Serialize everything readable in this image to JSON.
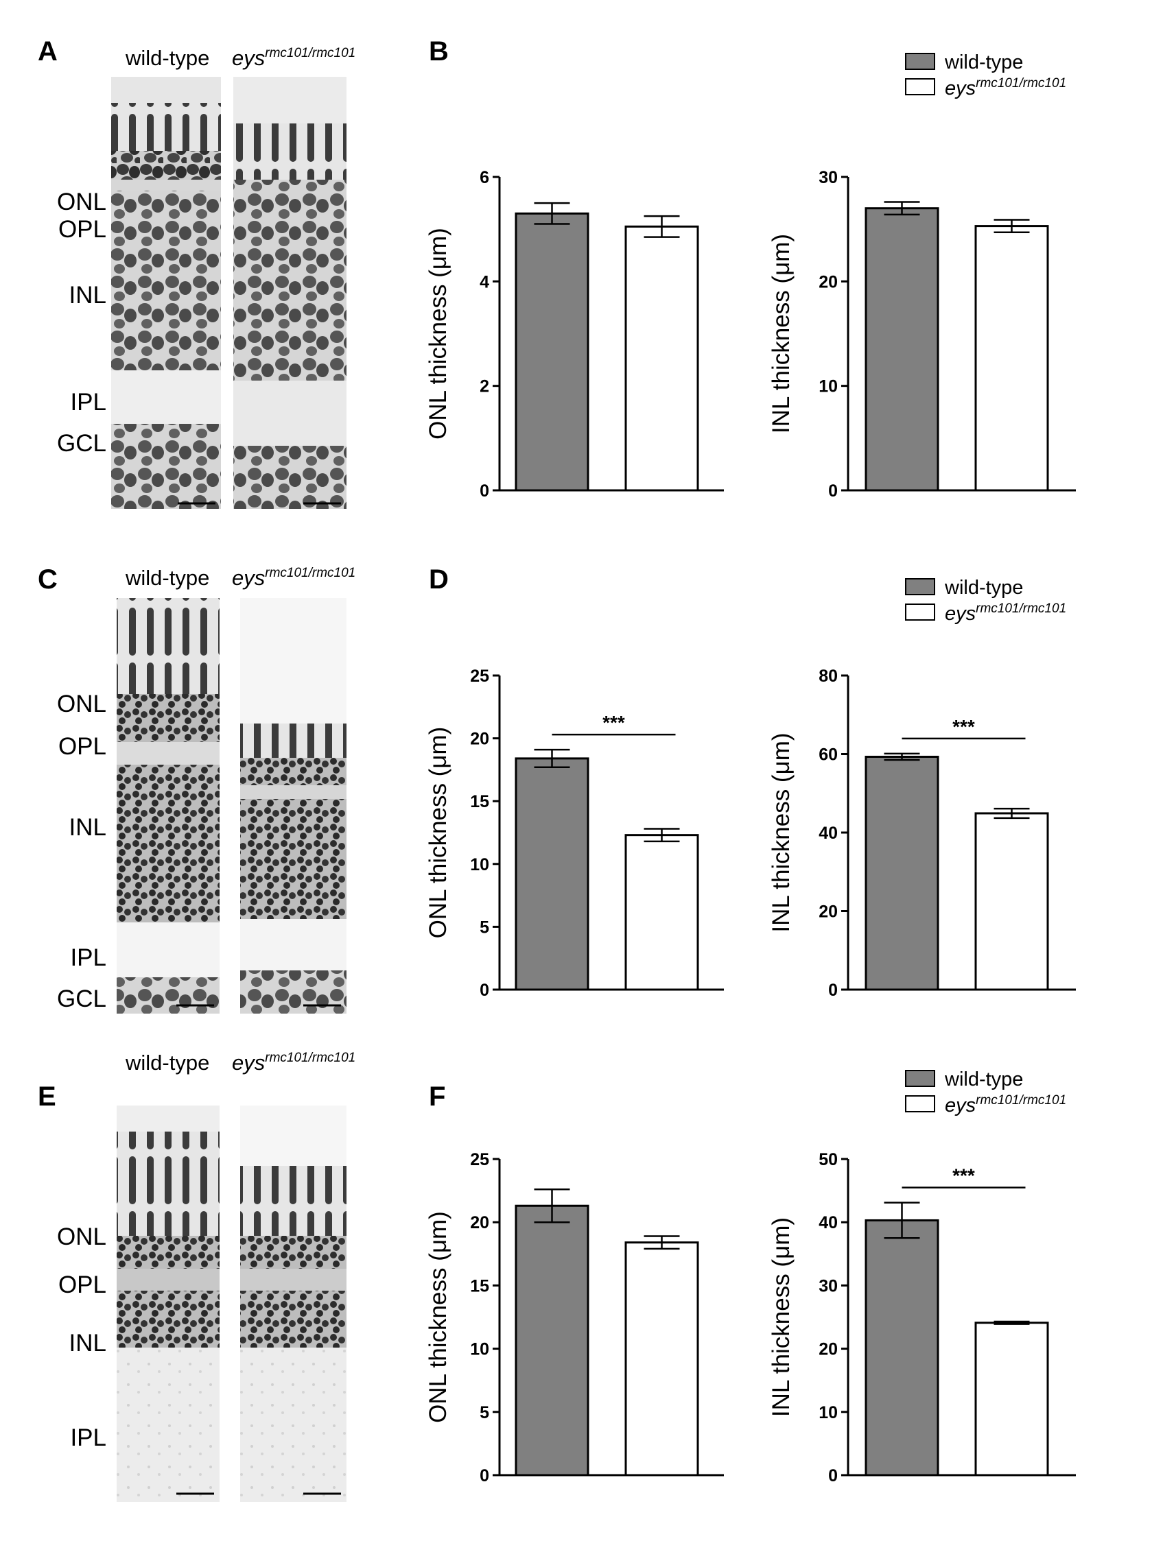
{
  "colors": {
    "wildtype": "#808080",
    "mutant": "#ffffff",
    "axis": "#000000"
  },
  "chart_data": [
    {
      "id": "B-ONL",
      "panel": "B",
      "type": "bar",
      "categories": [
        "wild-type",
        "eys rmc101/rmc101"
      ],
      "values": [
        5.3,
        5.05
      ],
      "errors": [
        0.2,
        0.2
      ],
      "ylim": [
        0,
        6
      ],
      "yticks": [
        "0",
        "2",
        "4",
        "6"
      ],
      "ylabel": "ONL thickness (μm)",
      "significance": ""
    },
    {
      "id": "B-INL",
      "panel": "B",
      "type": "bar",
      "categories": [
        "wild-type",
        "eys rmc101/rmc101"
      ],
      "values": [
        27.0,
        25.3
      ],
      "errors": [
        0.6,
        0.6
      ],
      "ylim": [
        0,
        30
      ],
      "yticks": [
        "0",
        "10",
        "20",
        "30"
      ],
      "ylabel": "INL thickness (μm)",
      "significance": ""
    },
    {
      "id": "D-ONL",
      "panel": "D",
      "type": "bar",
      "categories": [
        "wild-type",
        "eys rmc101/rmc101"
      ],
      "values": [
        18.4,
        12.3
      ],
      "errors": [
        0.7,
        0.5
      ],
      "ylim": [
        0,
        25
      ],
      "yticks": [
        "0",
        "5",
        "10",
        "15",
        "20",
        "25"
      ],
      "ylabel": "ONL thickness (μm)",
      "significance": "***"
    },
    {
      "id": "D-INL",
      "panel": "D",
      "type": "bar",
      "categories": [
        "wild-type",
        "eys rmc101/rmc101"
      ],
      "values": [
        59.3,
        44.9
      ],
      "errors": [
        0.8,
        1.2
      ],
      "ylim": [
        0,
        80
      ],
      "yticks": [
        "0",
        "20",
        "40",
        "60",
        "80"
      ],
      "ylabel": "INL thickness (μm)",
      "significance": "***"
    },
    {
      "id": "F-ONL",
      "panel": "F",
      "type": "bar",
      "categories": [
        "wild-type",
        "eys rmc101/rmc101"
      ],
      "values": [
        21.3,
        18.4
      ],
      "errors": [
        1.3,
        0.5
      ],
      "ylim": [
        0,
        25
      ],
      "yticks": [
        "0",
        "5",
        "10",
        "15",
        "20",
        "25"
      ],
      "ylabel": "ONL thickness (μm)",
      "significance": ""
    },
    {
      "id": "F-INL",
      "panel": "F",
      "type": "bar",
      "categories": [
        "wild-type",
        "eys rmc101/rmc101"
      ],
      "values": [
        40.3,
        24.1
      ],
      "errors": [
        2.8,
        0.2
      ],
      "ylim": [
        0,
        50
      ],
      "yticks": [
        "0",
        "10",
        "20",
        "30",
        "40",
        "50"
      ],
      "ylabel": "INL thickness (μm)",
      "significance": "***"
    }
  ],
  "legend": {
    "wildtype": "wild-type",
    "mutant_base": "eys",
    "mutant_sup": "rmc101/rmc101"
  },
  "micro_panels": [
    {
      "letter": "A",
      "wt_label": "wild-type",
      "mut_base": "eys",
      "mut_sup": "rmc101/rmc101",
      "layers": [
        "ONL",
        "OPL",
        "INL",
        "IPL",
        "GCL"
      ]
    },
    {
      "letter": "C",
      "wt_label": "wild-type",
      "mut_base": "eys",
      "mut_sup": "rmc101/rmc101",
      "layers": [
        "ONL",
        "OPL",
        "INL",
        "IPL",
        "GCL"
      ]
    },
    {
      "letter": "E",
      "wt_label": "wild-type",
      "mut_base": "eys",
      "mut_sup": "rmc101/rmc101",
      "layers": [
        "ONL",
        "OPL",
        "INL",
        "IPL"
      ]
    }
  ],
  "chart_panels": [
    "B",
    "D",
    "F"
  ]
}
